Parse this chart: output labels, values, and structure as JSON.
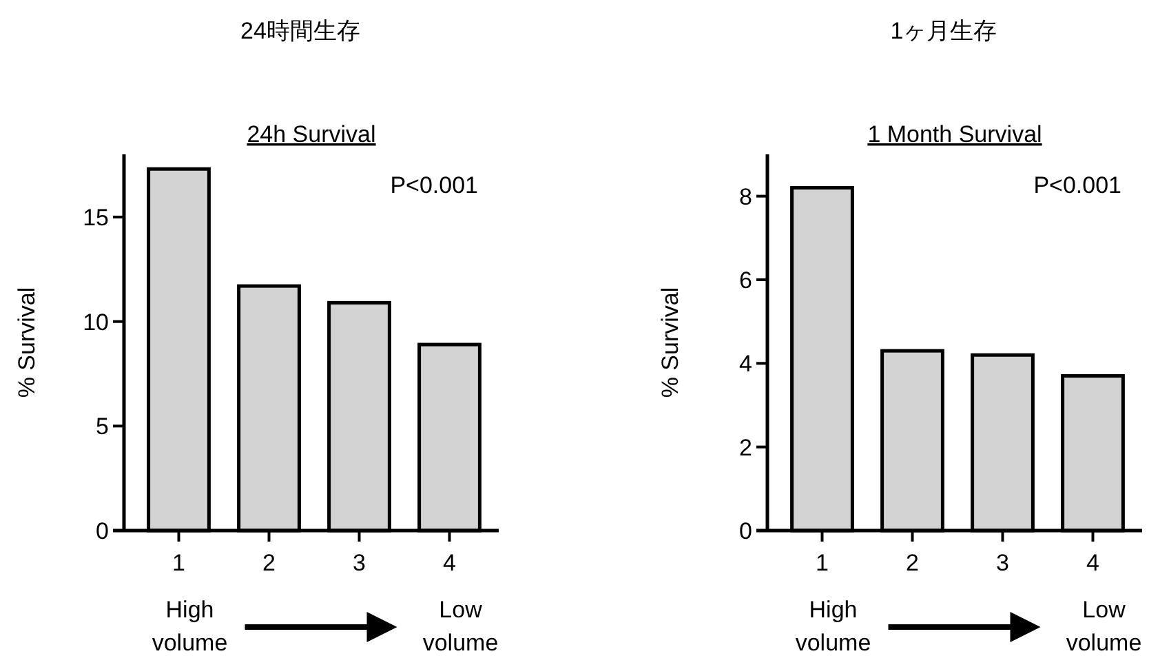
{
  "chart_data": [
    {
      "type": "bar",
      "title": "24時間生存",
      "subtitle": "24h Survival",
      "ylabel": "% Survival",
      "categories": [
        "1",
        "2",
        "3",
        "4"
      ],
      "values": [
        17.3,
        11.7,
        10.9,
        8.9
      ],
      "color": "#d3d3d3",
      "ylim": [
        0,
        18
      ],
      "yticks": [
        0,
        5,
        10,
        15
      ],
      "annotations": [
        "P<0.001",
        "High volume",
        "Low volume"
      ]
    },
    {
      "type": "bar",
      "title": "1ヶ月生存",
      "subtitle": "1 Month Survival",
      "ylabel": "% Survival",
      "categories": [
        "1",
        "2",
        "3",
        "4"
      ],
      "values": [
        8.2,
        4.3,
        4.2,
        3.7
      ],
      "color": "#d3d3d3",
      "ylim": [
        0,
        9
      ],
      "yticks": [
        0,
        2,
        4,
        6,
        8
      ],
      "annotations": [
        "P<0.001",
        "High volume",
        "Low volume"
      ]
    }
  ]
}
